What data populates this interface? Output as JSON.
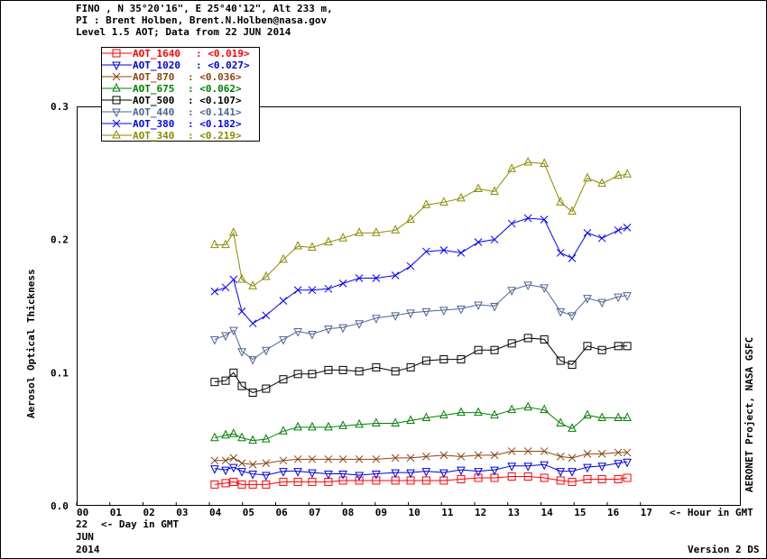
{
  "header": {
    "line1": "FINO , N 35°20'16\", E 25°40'12\", Alt 233 m,",
    "line2": "PI : Brent Holben, Brent.N.Holben@nasa.gov",
    "line3": "Level 1.5 AOT; Data from 22 JUN 2014"
  },
  "footer": {
    "day": "22",
    "day_label": "<- Day in GMT",
    "month": "JUN",
    "year": "2014",
    "version": "Version 2 DS",
    "hour_label": "<- Hour in GMT",
    "side_label": "AERONET Project, NASA GSFC"
  },
  "chart_data": {
    "type": "line",
    "title": "Level 1.5 AOT; Data from 22 JUN 2014",
    "xlabel": "Hour in GMT",
    "ylabel": "Aerosol Optical Thickness",
    "xlim": [
      0,
      20
    ],
    "ylim": [
      0,
      0.3
    ],
    "x_ticks": [
      "00",
      "01",
      "02",
      "03",
      "04",
      "05",
      "06",
      "07",
      "08",
      "09",
      "10",
      "11",
      "12",
      "13",
      "14",
      "15",
      "16",
      "17"
    ],
    "y_ticks": [
      "0.0",
      "0.1",
      "0.2",
      "0.3"
    ],
    "y_tick_values": [
      0,
      0.1,
      0.2,
      0.3
    ],
    "legend_position": "top-left",
    "x": [
      4.16,
      4.49,
      4.73,
      4.98,
      5.31,
      5.71,
      6.23,
      6.67,
      7.1,
      7.59,
      8.03,
      8.52,
      9.03,
      9.61,
      10.07,
      10.54,
      11.07,
      11.59,
      12.11,
      12.6,
      13.12,
      13.61,
      14.1,
      14.59,
      14.94,
      15.4,
      15.84,
      16.33,
      16.6
    ],
    "series": [
      {
        "name": "AOT_1640",
        "mean": "<0.019>",
        "color": "#ff0000",
        "marker": "square",
        "values": [
          0.016,
          0.017,
          0.018,
          0.016,
          0.016,
          0.016,
          0.018,
          0.018,
          0.018,
          0.018,
          0.019,
          0.019,
          0.019,
          0.019,
          0.019,
          0.019,
          0.019,
          0.02,
          0.021,
          0.021,
          0.022,
          0.022,
          0.021,
          0.019,
          0.018,
          0.02,
          0.02,
          0.02,
          0.021
        ]
      },
      {
        "name": "AOT_1020",
        "mean": "<0.027>",
        "color": "#0000e0",
        "marker": "triangle-down",
        "values": [
          0.028,
          0.027,
          0.029,
          0.026,
          0.024,
          0.023,
          0.026,
          0.026,
          0.025,
          0.024,
          0.024,
          0.023,
          0.024,
          0.025,
          0.025,
          0.026,
          0.025,
          0.027,
          0.026,
          0.027,
          0.03,
          0.03,
          0.031,
          0.026,
          0.026,
          0.029,
          0.03,
          0.032,
          0.033
        ]
      },
      {
        "name": "AOT_870",
        "mean": "<0.036>",
        "color": "#8b4513",
        "marker": "x",
        "values": [
          0.034,
          0.034,
          0.036,
          0.032,
          0.031,
          0.032,
          0.034,
          0.035,
          0.035,
          0.035,
          0.035,
          0.035,
          0.035,
          0.036,
          0.036,
          0.037,
          0.038,
          0.037,
          0.038,
          0.038,
          0.041,
          0.041,
          0.041,
          0.037,
          0.036,
          0.039,
          0.039,
          0.04,
          0.04
        ]
      },
      {
        "name": "AOT_675",
        "mean": "<0.062>",
        "color": "#008000",
        "marker": "triangle-up",
        "values": [
          0.051,
          0.053,
          0.054,
          0.051,
          0.049,
          0.05,
          0.056,
          0.059,
          0.059,
          0.059,
          0.06,
          0.061,
          0.062,
          0.062,
          0.064,
          0.066,
          0.068,
          0.07,
          0.07,
          0.068,
          0.072,
          0.074,
          0.072,
          0.062,
          0.058,
          0.068,
          0.066,
          0.066,
          0.066
        ]
      },
      {
        "name": "AOT_500",
        "mean": "<0.107>",
        "color": "#000000",
        "marker": "square",
        "values": [
          0.093,
          0.094,
          0.1,
          0.09,
          0.085,
          0.088,
          0.095,
          0.099,
          0.099,
          0.102,
          0.102,
          0.101,
          0.104,
          0.101,
          0.104,
          0.109,
          0.11,
          0.11,
          0.117,
          0.117,
          0.122,
          0.126,
          0.125,
          0.109,
          0.106,
          0.12,
          0.117,
          0.12,
          0.12
        ]
      },
      {
        "name": "AOT_440",
        "mean": "<0.141>",
        "color": "#4a6496",
        "marker": "triangle-down",
        "values": [
          0.125,
          0.128,
          0.132,
          0.116,
          0.11,
          0.117,
          0.125,
          0.131,
          0.129,
          0.133,
          0.134,
          0.137,
          0.141,
          0.143,
          0.145,
          0.146,
          0.147,
          0.148,
          0.151,
          0.15,
          0.162,
          0.166,
          0.164,
          0.146,
          0.143,
          0.156,
          0.153,
          0.157,
          0.158
        ]
      },
      {
        "name": "AOT_380",
        "mean": "<0.182>",
        "color": "#0000ff",
        "marker": "x",
        "values": [
          0.161,
          0.164,
          0.17,
          0.146,
          0.137,
          0.143,
          0.154,
          0.162,
          0.162,
          0.163,
          0.167,
          0.171,
          0.171,
          0.173,
          0.18,
          0.191,
          0.192,
          0.19,
          0.198,
          0.2,
          0.212,
          0.216,
          0.215,
          0.19,
          0.186,
          0.205,
          0.201,
          0.207,
          0.209
        ]
      },
      {
        "name": "AOT_340",
        "mean": "<0.219>",
        "color": "#8b8b00",
        "marker": "triangle-up",
        "values": [
          0.196,
          0.196,
          0.205,
          0.17,
          0.165,
          0.172,
          0.185,
          0.195,
          0.194,
          0.198,
          0.201,
          0.205,
          0.205,
          0.207,
          0.215,
          0.226,
          0.228,
          0.231,
          0.238,
          0.236,
          0.253,
          0.258,
          0.257,
          0.228,
          0.221,
          0.246,
          0.242,
          0.248,
          0.249
        ]
      }
    ]
  }
}
